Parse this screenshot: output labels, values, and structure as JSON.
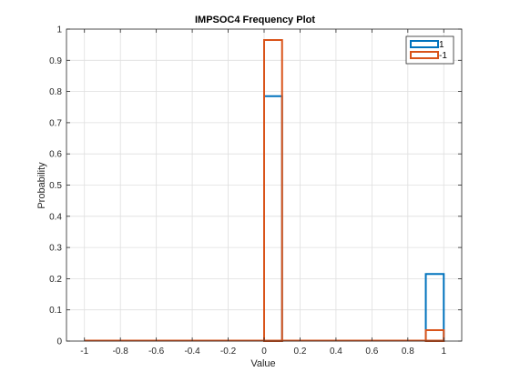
{
  "chart_data": {
    "type": "histogram",
    "title": "IMPSOC4 Frequency Plot",
    "xlabel": "Value",
    "ylabel": "Probability",
    "xlim": [
      -1.1,
      1.1
    ],
    "ylim": [
      0,
      1
    ],
    "xticks": [
      -1,
      -0.8,
      -0.6,
      -0.4,
      -0.2,
      0,
      0.2,
      0.4,
      0.6,
      0.8,
      1
    ],
    "xtick_labels": [
      "-1",
      "-0.8",
      "-0.6",
      "-0.4",
      "-0.2",
      "0",
      "0.2",
      "0.4",
      "0.6",
      "0.8",
      "1"
    ],
    "yticks": [
      0,
      0.1,
      0.2,
      0.3,
      0.4,
      0.5,
      0.6,
      0.7,
      0.8,
      0.9,
      1
    ],
    "ytick_labels": [
      "0",
      "0.1",
      "0.2",
      "0.3",
      "0.4",
      "0.5",
      "0.6",
      "0.7",
      "0.8",
      "0.9",
      "1"
    ],
    "grid": true,
    "legend_position": "top-right",
    "bin_edges": [
      -1,
      -0.9,
      -0.8,
      -0.7,
      -0.6,
      -0.5,
      -0.4,
      -0.3,
      -0.2,
      -0.1,
      0,
      0.1,
      0.2,
      0.3,
      0.4,
      0.5,
      0.6,
      0.7,
      0.8,
      0.9,
      1
    ],
    "plot_edges": [
      -1,
      0,
      0.1,
      0.9,
      1
    ],
    "series": [
      {
        "name": "1",
        "color": "#0072BD",
        "values": [
          0,
          0.785,
          0,
          0.215
        ]
      },
      {
        "name": "-1",
        "color": "#D95319",
        "values": [
          0,
          0.965,
          0,
          0.035
        ]
      }
    ]
  }
}
